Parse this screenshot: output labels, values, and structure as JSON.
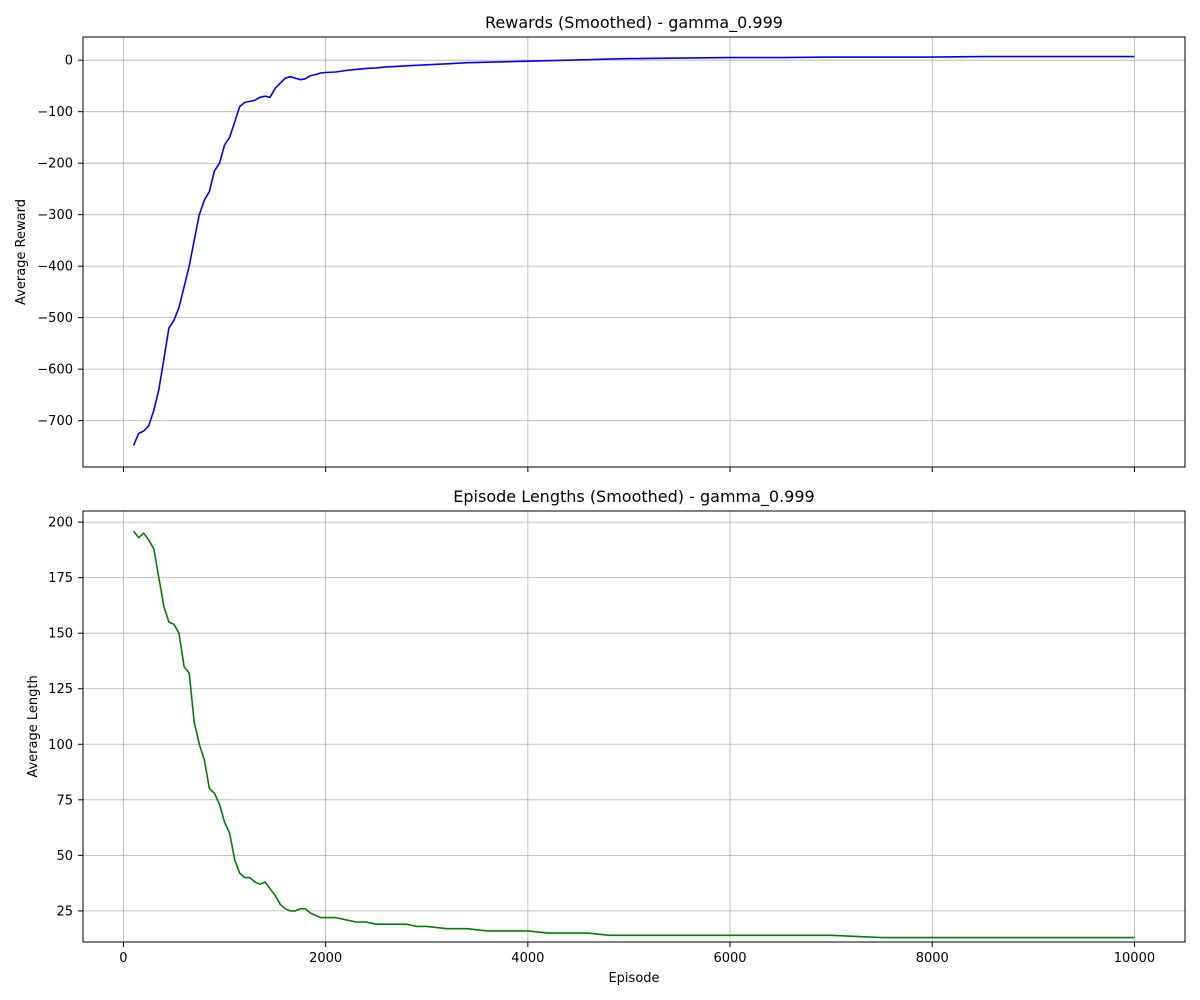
{
  "chart_data": [
    {
      "type": "line",
      "title": "Rewards (Smoothed) - gamma_0.999",
      "xlabel": "",
      "ylabel": "Average Reward",
      "xlim": [
        -400,
        10500
      ],
      "ylim": [
        -790,
        45
      ],
      "grid": true,
      "xticks": [
        0,
        2000,
        4000,
        6000,
        8000,
        10000
      ],
      "xtick_labels_shown": false,
      "yticks": [
        -700,
        -600,
        -500,
        -400,
        -300,
        -200,
        -100,
        0
      ],
      "ytick_labels": [
        "−700",
        "−600",
        "−500",
        "−400",
        "−300",
        "−200",
        "−100",
        "0"
      ],
      "series": [
        {
          "color": "#0000ff",
          "x": [
            100,
            150,
            200,
            250,
            300,
            350,
            400,
            450,
            500,
            550,
            600,
            650,
            700,
            750,
            800,
            850,
            900,
            950,
            1000,
            1050,
            1100,
            1150,
            1200,
            1250,
            1300,
            1350,
            1400,
            1450,
            1500,
            1550,
            1600,
            1650,
            1700,
            1750,
            1800,
            1850,
            1900,
            1950,
            2000,
            2100,
            2200,
            2300,
            2400,
            2500,
            2600,
            2700,
            2800,
            2900,
            3000,
            3200,
            3400,
            3600,
            3800,
            4000,
            4200,
            4400,
            4600,
            4800,
            5000,
            5500,
            6000,
            6500,
            7000,
            7500,
            8000,
            8500,
            9000,
            9500,
            10000
          ],
          "values": [
            -748,
            -725,
            -720,
            -710,
            -680,
            -640,
            -580,
            -520,
            -505,
            -480,
            -440,
            -400,
            -350,
            -300,
            -272,
            -255,
            -215,
            -200,
            -165,
            -150,
            -120,
            -90,
            -82,
            -80,
            -78,
            -72,
            -70,
            -72,
            -55,
            -45,
            -35,
            -32,
            -35,
            -38,
            -36,
            -30,
            -28,
            -25,
            -24,
            -23,
            -20,
            -18,
            -16,
            -15,
            -13,
            -12,
            -11,
            -10,
            -9,
            -7,
            -5,
            -4,
            -3,
            -2,
            -1,
            0,
            1,
            2,
            3,
            4,
            5,
            5,
            6,
            6,
            6,
            7,
            7,
            7,
            7
          ]
        }
      ]
    },
    {
      "type": "line",
      "title": "Episode Lengths (Smoothed) - gamma_0.999",
      "xlabel": "Episode",
      "ylabel": "Average Length",
      "xlim": [
        -400,
        10500
      ],
      "ylim": [
        11,
        205
      ],
      "grid": true,
      "xticks": [
        0,
        2000,
        4000,
        6000,
        8000,
        10000
      ],
      "xtick_labels": [
        "0",
        "2000",
        "4000",
        "6000",
        "8000",
        "10000"
      ],
      "yticks": [
        25,
        50,
        75,
        100,
        125,
        150,
        175,
        200
      ],
      "ytick_labels": [
        "25",
        "50",
        "75",
        "100",
        "125",
        "150",
        "175",
        "200"
      ],
      "series": [
        {
          "color": "#008000",
          "x": [
            100,
            150,
            200,
            250,
            300,
            350,
            400,
            450,
            500,
            550,
            600,
            650,
            700,
            750,
            800,
            850,
            900,
            950,
            1000,
            1050,
            1100,
            1150,
            1200,
            1250,
            1300,
            1350,
            1400,
            1450,
            1500,
            1550,
            1600,
            1650,
            1700,
            1750,
            1800,
            1850,
            1900,
            1950,
            2000,
            2100,
            2200,
            2300,
            2400,
            2500,
            2600,
            2700,
            2800,
            2900,
            3000,
            3200,
            3400,
            3600,
            3800,
            4000,
            4200,
            4400,
            4600,
            4800,
            5000,
            5500,
            6000,
            6500,
            7000,
            7500,
            8000,
            8500,
            9000,
            9500,
            10000
          ],
          "values": [
            196,
            193,
            195,
            192,
            188,
            175,
            162,
            155,
            154,
            150,
            135,
            132,
            110,
            100,
            93,
            80,
            78,
            73,
            65,
            60,
            48,
            42,
            40,
            40,
            38,
            37,
            38,
            35,
            32,
            28,
            26,
            25,
            25,
            26,
            26,
            24,
            23,
            22,
            22,
            22,
            21,
            20,
            20,
            19,
            19,
            19,
            19,
            18,
            18,
            17,
            17,
            16,
            16,
            16,
            15,
            15,
            15,
            14,
            14,
            14,
            14,
            14,
            14,
            13,
            13,
            13,
            13,
            13,
            13
          ]
        }
      ]
    }
  ]
}
